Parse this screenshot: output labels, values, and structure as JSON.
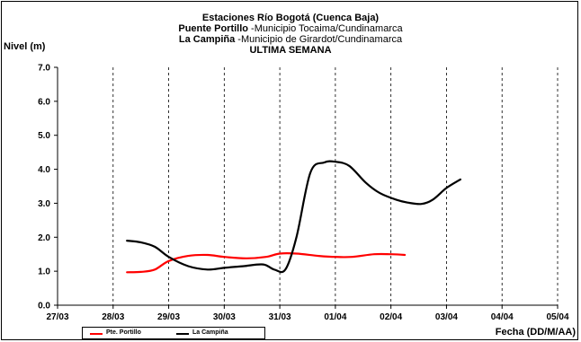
{
  "chart_data": {
    "type": "line",
    "title_line1": "Estaciones Río Bogotá (Cuenca Baja)",
    "title_line2_bold": "Puente Portillo",
    "title_line2_rest": " -Municipio Tocaima/Cundinamarca",
    "title_line3_bold": "La Campiña",
    "title_line3_rest": " -Municipio de Girardot/Cundinamarca",
    "title_line4": "ULTIMA SEMANA",
    "ylabel": "Nivel (m)",
    "xlabel": "Fecha (DD/M/AA)",
    "ylim": [
      0,
      7
    ],
    "yticks": [
      "0.0",
      "1.0",
      "2.0",
      "3.0",
      "4.0",
      "5.0",
      "6.0",
      "7.0"
    ],
    "xlim": [
      0,
      9
    ],
    "xticks": [
      "27/03",
      "28/03",
      "29/03",
      "30/03",
      "31/03",
      "01/04",
      "02/04",
      "03/04",
      "04/04",
      "05/04"
    ],
    "grid": "vertical dashed",
    "legend_position": "bottom-left",
    "series": [
      {
        "name": "Pte. Portillo",
        "color": "#ff0000",
        "points": [
          [
            1.25,
            0.97
          ],
          [
            1.5,
            0.98
          ],
          [
            1.75,
            1.05
          ],
          [
            2.0,
            1.3
          ],
          [
            2.35,
            1.45
          ],
          [
            2.7,
            1.48
          ],
          [
            3.0,
            1.42
          ],
          [
            3.4,
            1.38
          ],
          [
            3.75,
            1.42
          ],
          [
            4.0,
            1.52
          ],
          [
            4.3,
            1.52
          ],
          [
            4.7,
            1.45
          ],
          [
            5.0,
            1.42
          ],
          [
            5.3,
            1.42
          ],
          [
            5.7,
            1.5
          ],
          [
            6.0,
            1.5
          ],
          [
            6.25,
            1.48
          ]
        ]
      },
      {
        "name": "La Campiña",
        "color": "#000000",
        "points": [
          [
            1.25,
            1.9
          ],
          [
            1.5,
            1.85
          ],
          [
            1.75,
            1.72
          ],
          [
            2.0,
            1.42
          ],
          [
            2.35,
            1.15
          ],
          [
            2.7,
            1.05
          ],
          [
            3.0,
            1.1
          ],
          [
            3.35,
            1.15
          ],
          [
            3.7,
            1.2
          ],
          [
            3.9,
            1.05
          ],
          [
            4.1,
            1.05
          ],
          [
            4.3,
            2.0
          ],
          [
            4.55,
            3.9
          ],
          [
            4.8,
            4.2
          ],
          [
            5.0,
            4.22
          ],
          [
            5.25,
            4.1
          ],
          [
            5.55,
            3.6
          ],
          [
            5.8,
            3.3
          ],
          [
            6.1,
            3.1
          ],
          [
            6.3,
            3.02
          ],
          [
            6.55,
            2.98
          ],
          [
            6.75,
            3.1
          ],
          [
            7.0,
            3.45
          ],
          [
            7.25,
            3.7
          ]
        ]
      }
    ]
  }
}
